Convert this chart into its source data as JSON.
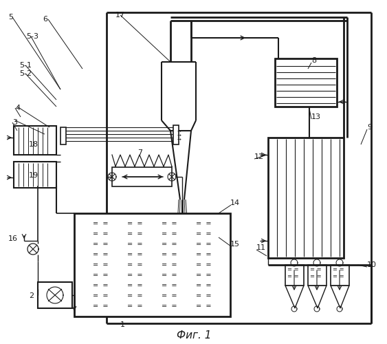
{
  "title": "Фиг. 1",
  "bg_color": "#ffffff",
  "lc": "#1a1a1a",
  "fig_width": 5.63,
  "fig_height": 5.0,
  "dpi": 100
}
